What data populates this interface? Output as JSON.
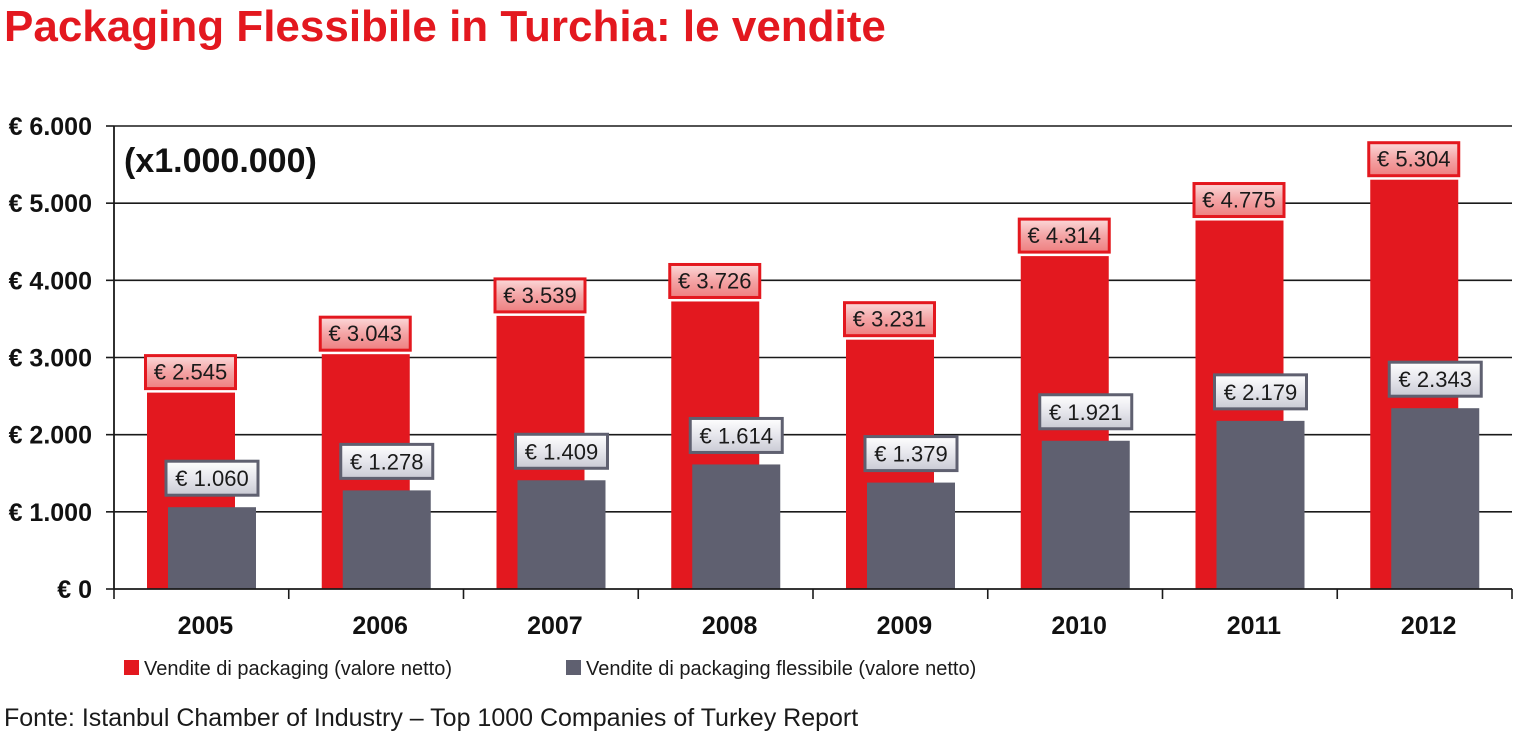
{
  "chart_data": {
    "type": "bar",
    "title": "Packaging Flessibile in Turchia: le vendite",
    "unit_note": "(x1.000.000)",
    "categories": [
      "2005",
      "2006",
      "2007",
      "2008",
      "2009",
      "2010",
      "2011",
      "2012"
    ],
    "series": [
      {
        "name": "Vendite di packaging (valore netto)",
        "color": "#e3181f",
        "values": [
          2545,
          3043,
          3539,
          3726,
          3231,
          4314,
          4775,
          5304
        ],
        "labels": [
          "€ 2.545",
          "€ 3.043",
          "€ 3.539",
          "€ 3.726",
          "€ 3.231",
          "€ 4.314",
          "€ 4.775",
          "€ 5.304"
        ]
      },
      {
        "name": "Vendite di packaging flessibile (valore netto)",
        "color": "#5f6070",
        "values": [
          1060,
          1278,
          1409,
          1614,
          1379,
          1921,
          2179,
          2343
        ],
        "labels": [
          "€ 1.060",
          "€ 1.278",
          "€ 1.409",
          "€ 1.614",
          "€ 1.379",
          "€ 1.921",
          "€ 2.179",
          "€ 2.343"
        ]
      }
    ],
    "ylim": [
      0,
      6000
    ],
    "yticks": [
      0,
      1000,
      2000,
      3000,
      4000,
      5000,
      6000
    ],
    "ytick_labels": [
      "€ 0",
      "€ 1.000",
      "€ 2.000",
      "€ 3.000",
      "€ 4.000",
      "€ 5.000",
      "€ 6.000"
    ],
    "grid": true,
    "legend_position": "bottom-left",
    "source": "Fonte: Istanbul Chamber of Industry – Top 1000 Companies of Turkey Report"
  }
}
